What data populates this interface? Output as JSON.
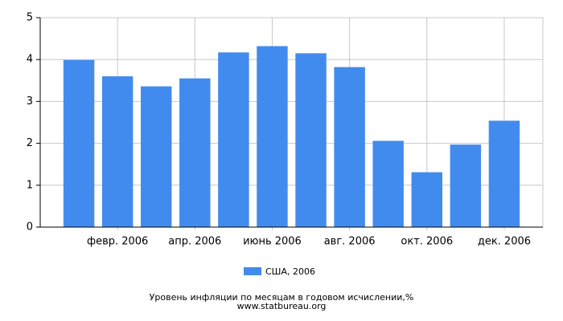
{
  "chart_data": {
    "type": "bar",
    "title": "Уровень инфляции по месяцам в годовом исчислении,%",
    "source": "www.statbureau.org",
    "categories": [
      null,
      "февр. 2006",
      null,
      "апр. 2006",
      null,
      "июнь 2006",
      null,
      "авг. 2006",
      null,
      "окт. 2006",
      null,
      "дек. 2006"
    ],
    "series": [
      {
        "name": "США, 2006",
        "color": "#428bee",
        "values": [
          3.99,
          3.6,
          3.36,
          3.55,
          4.17,
          4.32,
          4.15,
          3.82,
          2.06,
          1.31,
          1.97,
          2.54
        ]
      }
    ],
    "ylim": [
      0,
      5
    ],
    "yticks": [
      0,
      1,
      2,
      3,
      4,
      5
    ],
    "grid": true,
    "legend": "bottom"
  }
}
